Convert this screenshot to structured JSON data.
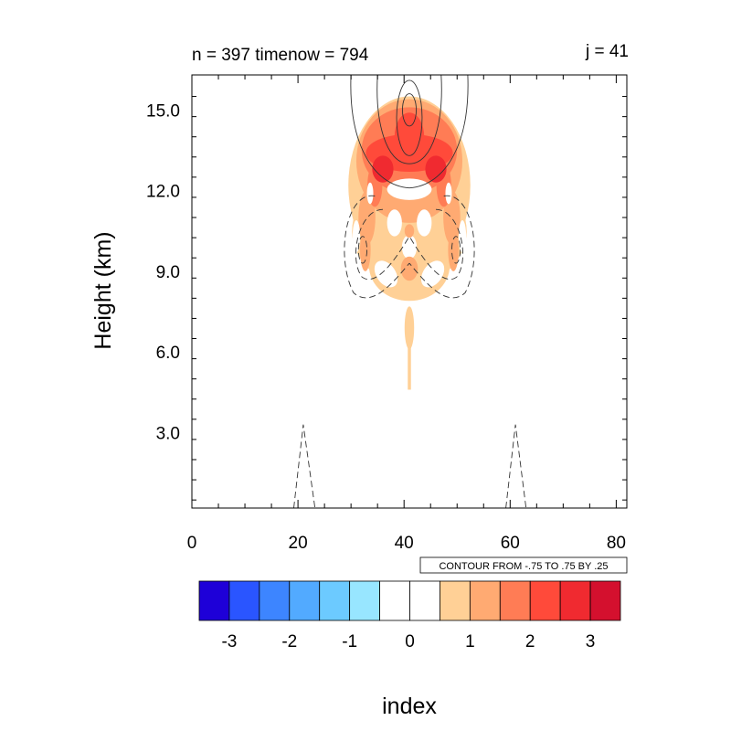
{
  "chart_data": {
    "type": "contour",
    "title_left": "n = 397 timenow = 794",
    "title_right": "j = 41",
    "ylabel": "Height (km)",
    "xlabel": "index",
    "xlim": [
      0,
      82
    ],
    "ylim": [
      0.2,
      16.3
    ],
    "x_ticks": [
      0,
      20,
      40,
      60,
      80
    ],
    "y_ticks": [
      3.0,
      6.0,
      9.0,
      12.0,
      15.0
    ],
    "contour_info": "CONTOUR FROM -.75 TO .75 BY .25",
    "colorbar": {
      "labels": [
        "-3",
        "-2",
        "-1",
        "0",
        "1",
        "2",
        "3"
      ],
      "label_values": [
        -3,
        -2,
        -1,
        0,
        1,
        2,
        3
      ],
      "range": [
        -3.5,
        3.5
      ],
      "colors": [
        "#1e00d8",
        "#2a55ff",
        "#3d85ff",
        "#52aaff",
        "#6ccaff",
        "#98e6ff",
        "#ffffff",
        "#ffffff",
        "#ffd096",
        "#ffaa72",
        "#ff7c55",
        "#ff4a3a",
        "#f02a30",
        "#d4102e"
      ]
    }
  }
}
